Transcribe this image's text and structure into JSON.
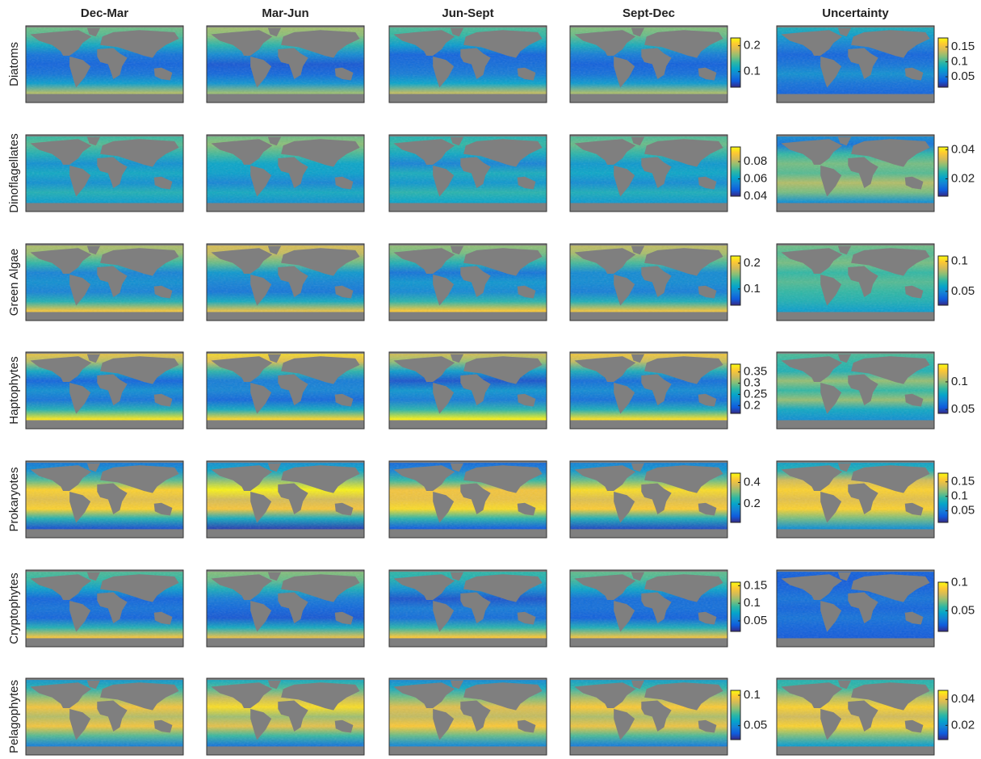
{
  "columns": [
    "Dec-Mar",
    "Mar-Jun",
    "Jun-Sept",
    "Sept-Dec",
    "Uncertainty"
  ],
  "rows": [
    {
      "label": "Diatoms",
      "colorbars": [
        {
          "lim": [
            0.04,
            0.23
          ],
          "ticks": [
            0.1,
            0.2
          ]
        },
        {
          "lim": [
            0.015,
            0.18
          ],
          "ticks": [
            0.05,
            0.1,
            0.15
          ]
        }
      ]
    },
    {
      "label": "Dinoflagellates",
      "colorbars": [
        {
          "lim": [
            0.04,
            0.097
          ],
          "ticks": [
            0.04,
            0.06,
            0.08
          ]
        },
        {
          "lim": [
            0.008,
            0.042
          ],
          "ticks": [
            0.02,
            0.04
          ]
        }
      ]
    },
    {
      "label": "Green Algae",
      "colorbars": [
        {
          "lim": [
            0.037,
            0.228
          ],
          "ticks": [
            0.1,
            0.2
          ]
        },
        {
          "lim": [
            0.027,
            0.109
          ],
          "ticks": [
            0.05,
            0.1
          ]
        }
      ]
    },
    {
      "label": "Haptophytes",
      "colorbars": [
        {
          "lim": [
            0.165,
            0.385
          ],
          "ticks": [
            0.2,
            0.25,
            0.3,
            0.35
          ]
        },
        {
          "lim": [
            0.043,
            0.132
          ],
          "ticks": [
            0.05,
            0.1
          ]
        }
      ]
    },
    {
      "label": "Prokaryotes",
      "colorbars": [
        {
          "lim": [
            0.03,
            0.486
          ],
          "ticks": [
            0.2,
            0.4
          ]
        },
        {
          "lim": [
            0.01,
            0.18
          ],
          "ticks": [
            0.05,
            0.1,
            0.15
          ]
        }
      ]
    },
    {
      "label": "Cryptophytes",
      "colorbars": [
        {
          "lim": [
            0.02,
            0.16
          ],
          "ticks": [
            0.05,
            0.1,
            0.15
          ]
        },
        {
          "lim": [
            0.013,
            0.101
          ],
          "ticks": [
            0.05,
            0.1
          ]
        }
      ]
    },
    {
      "label": "Pelagophytes",
      "colorbars": [
        {
          "lim": [
            0.027,
            0.108
          ],
          "ticks": [
            0.05,
            0.1
          ]
        },
        {
          "lim": [
            0.009,
            0.047
          ],
          "ticks": [
            0.02,
            0.04
          ]
        }
      ]
    }
  ]
}
